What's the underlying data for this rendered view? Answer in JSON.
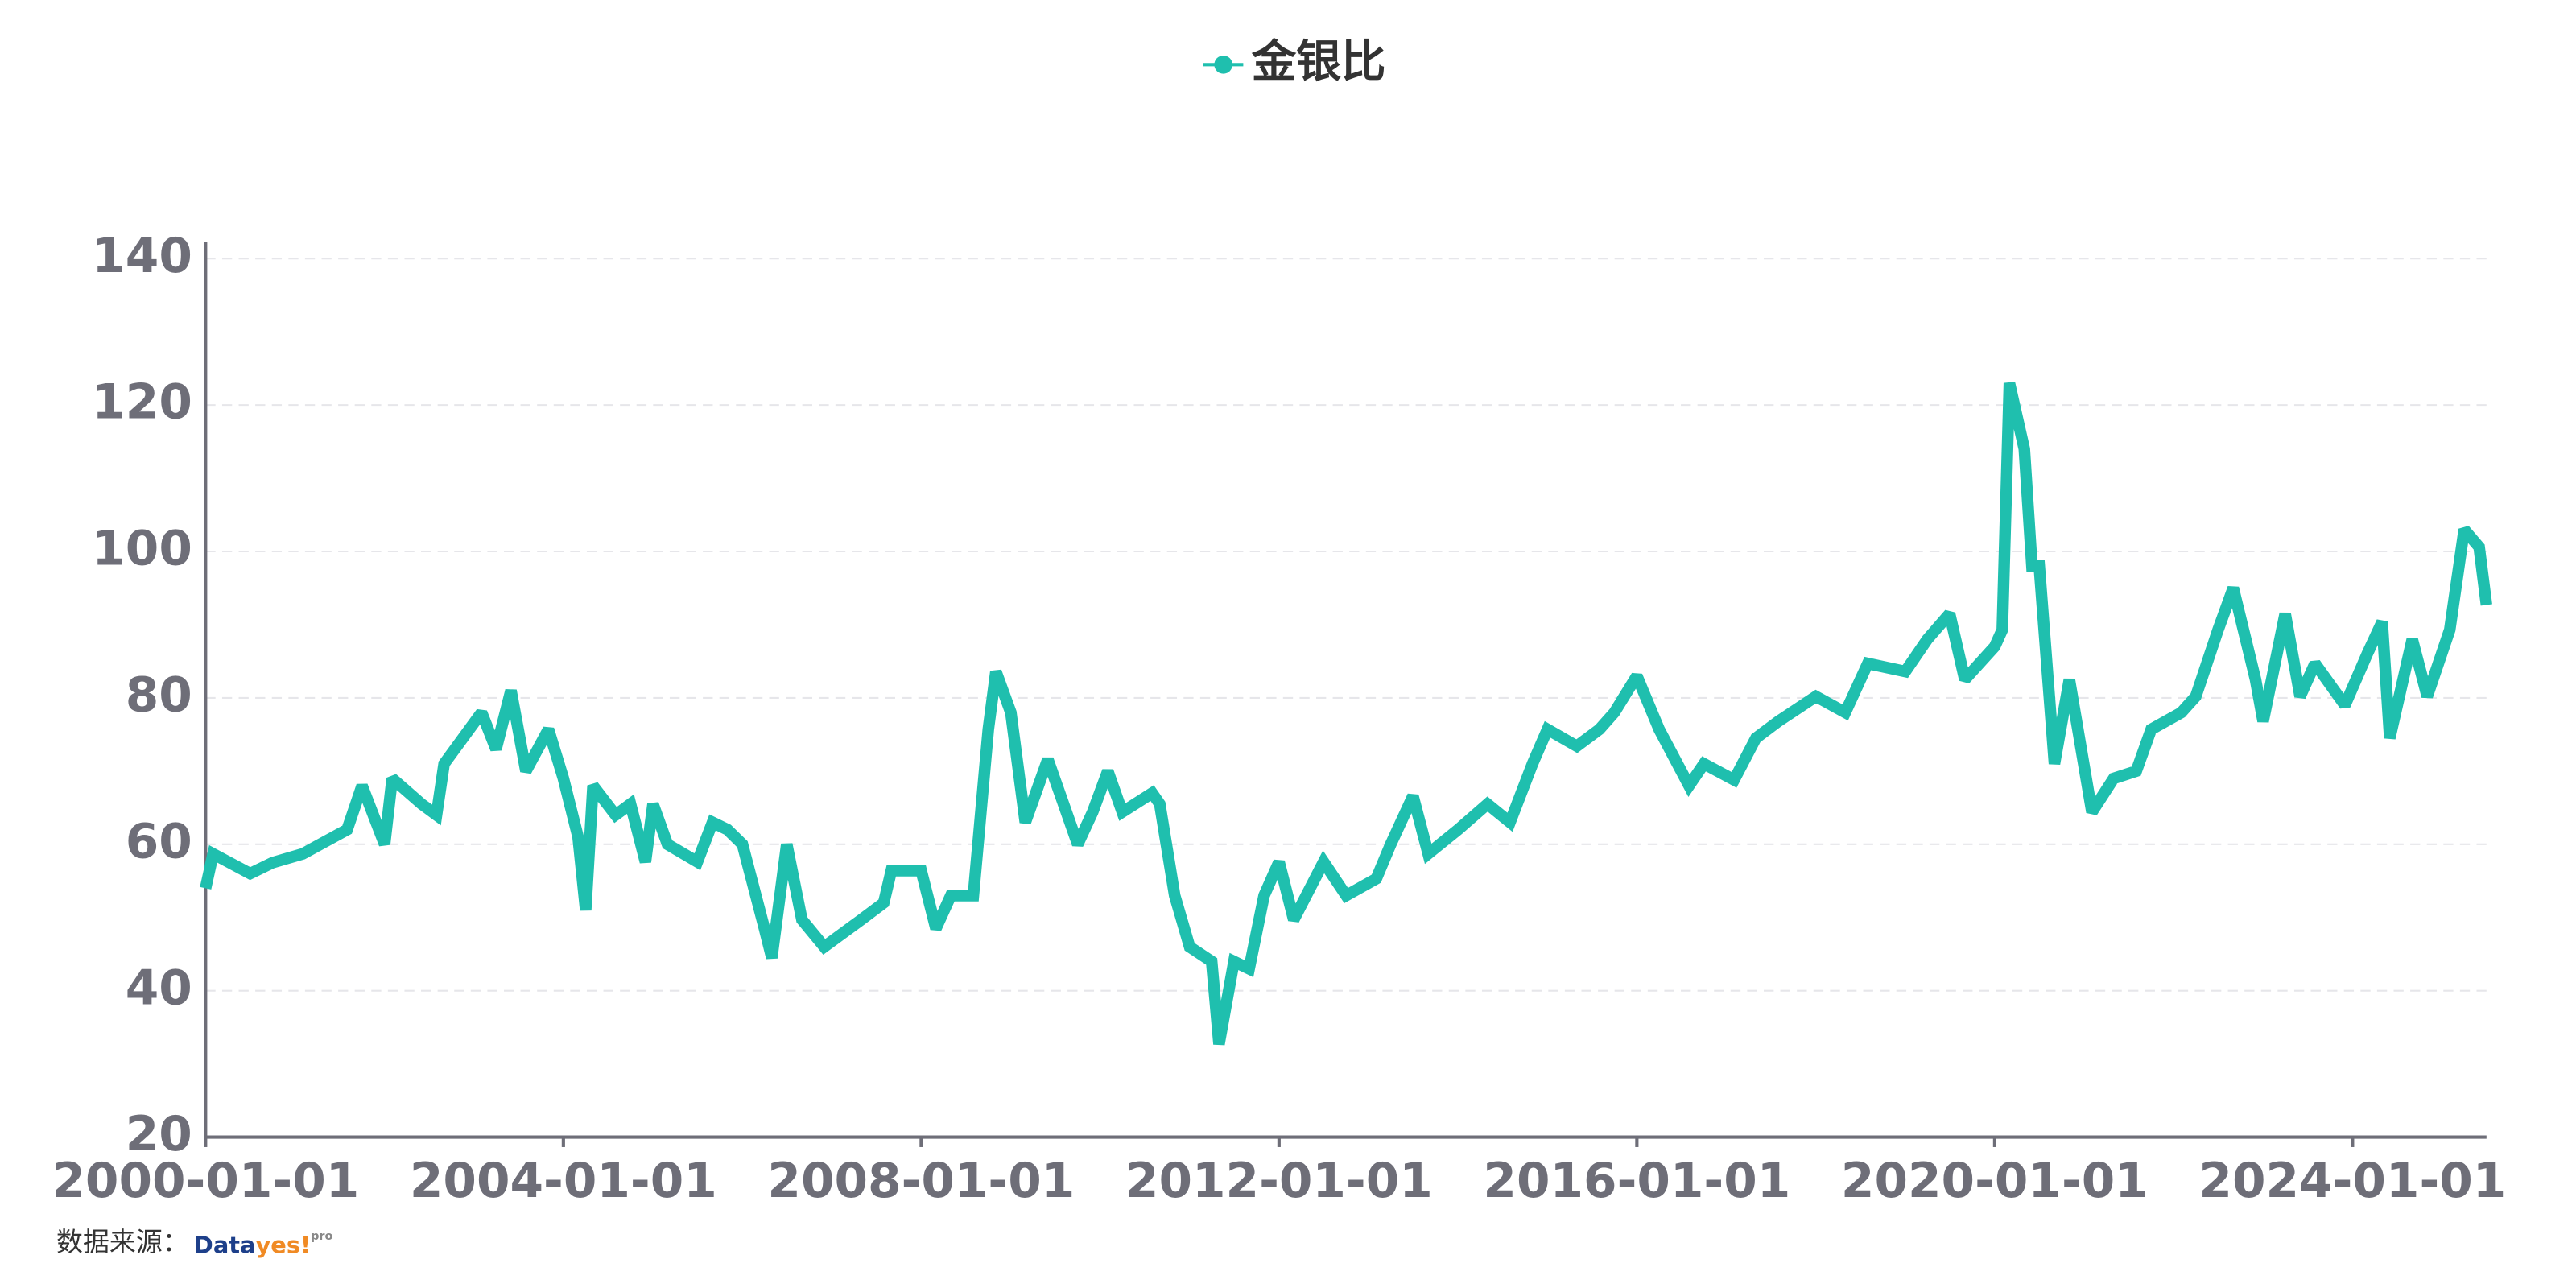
{
  "chart_data": {
    "type": "line",
    "series": [
      {
        "name": "金银比",
        "color": "#1fbfae",
        "x": [
          "2000-01-01",
          "2000-02-01",
          "2000-07-01",
          "2000-10-01",
          "2001-02-01",
          "2001-08-01",
          "2001-10-01",
          "2002-01-01",
          "2002-02-01",
          "2002-06-01",
          "2002-08-01",
          "2002-09-01",
          "2003-02-01",
          "2003-04-01",
          "2003-06-01",
          "2003-08-01",
          "2003-11-01",
          "2004-01-01",
          "2004-03-01",
          "2004-04-01",
          "2004-05-01",
          "2004-08-01",
          "2004-10-01",
          "2004-12-01",
          "2005-01-01",
          "2005-03-01",
          "2005-07-01",
          "2005-09-01",
          "2005-11-01",
          "2006-01-01",
          "2006-04-01",
          "2006-05-01",
          "2006-07-01",
          "2006-09-01",
          "2006-12-01",
          "2007-05-01",
          "2007-08-01",
          "2007-09-01",
          "2008-01-01",
          "2008-03-01",
          "2008-05-01",
          "2008-08-01",
          "2008-10-01",
          "2008-11-01",
          "2009-01-01",
          "2009-03-01",
          "2009-06-01",
          "2009-10-01",
          "2009-12-01",
          "2010-02-01",
          "2010-04-01",
          "2010-08-01",
          "2010-09-01",
          "2010-11-01",
          "2011-01-01",
          "2011-04-01",
          "2011-05-01",
          "2011-07-01",
          "2011-09-01",
          "2011-11-01",
          "2012-01-01",
          "2012-03-01",
          "2012-07-01",
          "2012-10-01",
          "2013-02-01",
          "2013-04-01",
          "2013-07-01",
          "2013-09-01",
          "2014-01-01",
          "2014-05-01",
          "2014-08-01",
          "2014-11-01",
          "2015-01-01",
          "2015-05-01",
          "2015-08-01",
          "2015-10-01",
          "2016-01-01",
          "2016-04-01",
          "2016-08-01",
          "2016-10-01",
          "2017-02-01",
          "2017-05-01",
          "2017-08-01",
          "2018-01-01",
          "2018-05-01",
          "2018-08-01",
          "2019-01-01",
          "2019-04-01",
          "2019-07-01",
          "2019-09-01",
          "2020-01-01",
          "2020-02-01",
          "2020-03-01",
          "2020-05-01",
          "2020-06-01",
          "2020-07-01",
          "2020-09-01",
          "2020-11-01",
          "2021-02-01",
          "2021-05-01",
          "2021-08-01",
          "2021-10-01",
          "2022-02-01",
          "2022-04-01",
          "2022-07-01",
          "2022-09-01",
          "2022-12-01",
          "2023-01-01",
          "2023-04-01",
          "2023-06-01",
          "2023-08-01",
          "2023-12-01",
          "2024-03-01",
          "2024-05-01",
          "2024-06-01",
          "2024-09-01",
          "2024-11-01",
          "2025-02-01",
          "2025-04-01",
          "2025-06-01",
          "2025-07-01"
        ],
        "values": [
          54,
          58.7,
          56,
          57.5,
          58.7,
          62,
          68,
          60,
          69,
          65.5,
          64,
          71,
          78,
          73,
          81,
          70,
          75.7,
          69,
          61,
          51,
          68,
          64,
          65.5,
          57.6,
          65.5,
          60,
          57.6,
          63,
          62,
          60,
          48.5,
          44.5,
          60,
          49.7,
          46,
          49.7,
          52,
          56.4,
          56.4,
          48.5,
          53,
          53,
          75.7,
          83.6,
          78,
          63,
          71.6,
          60,
          64.4,
          70,
          64.4,
          67,
          65.5,
          53,
          46,
          44,
          32.7,
          44,
          43,
          53,
          57.6,
          49.7,
          57.6,
          53,
          55.3,
          60,
          66.6,
          58.7,
          62,
          65.5,
          63,
          71,
          75.7,
          73.4,
          75.7,
          78,
          83,
          75.7,
          68,
          71,
          68.8,
          74.5,
          76.8,
          80.2,
          78,
          84.7,
          83.6,
          88,
          91.5,
          82.5,
          87,
          89.3,
          123,
          114,
          98,
          98,
          71,
          82.5,
          64.4,
          69,
          70,
          75.7,
          78,
          80.2,
          89.3,
          95,
          82.5,
          76.8,
          91.5,
          80.2,
          84.7,
          79,
          86,
          90.4,
          74.5,
          88,
          80.2,
          89.3,
          103,
          100.6,
          92.7
        ]
      }
    ],
    "xlim": [
      "2000-01-01",
      "2025-07-01"
    ],
    "xticks": [
      "2000-01-01",
      "2004-01-01",
      "2008-01-01",
      "2012-01-01",
      "2016-01-01",
      "2020-01-01",
      "2024-01-01"
    ],
    "ylim": [
      20,
      140
    ],
    "yticks": [
      20,
      40,
      60,
      80,
      100,
      120,
      140
    ],
    "grid": true,
    "legend": "top",
    "source": "数据来源：",
    "logo": {
      "parts": [
        "Data",
        "yes!"
      ],
      "sup": "pro"
    }
  }
}
